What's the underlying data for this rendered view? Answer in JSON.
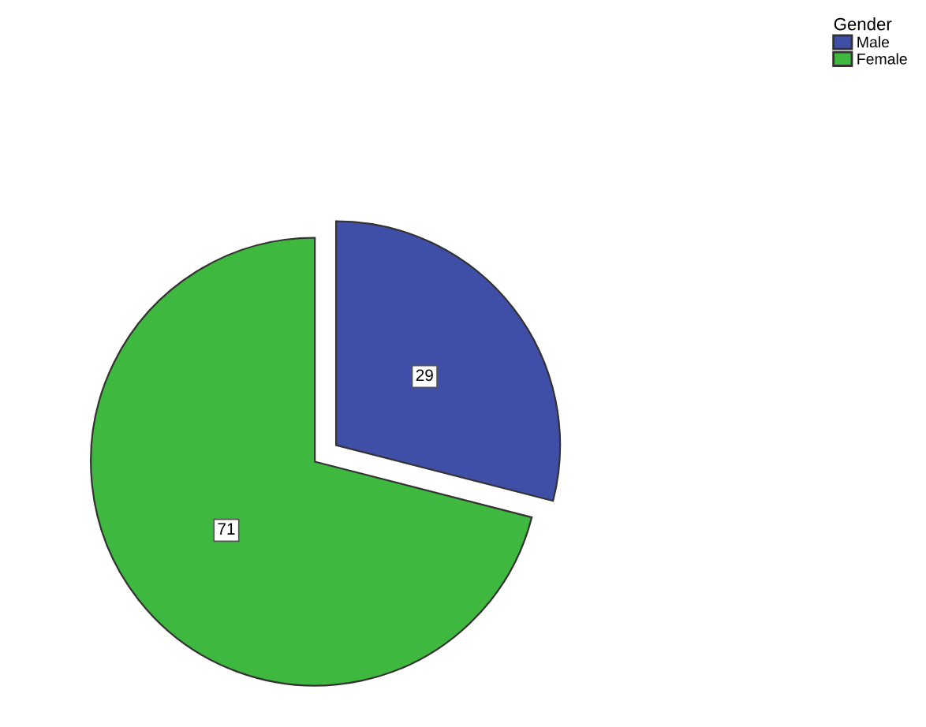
{
  "chart_data": {
    "type": "pie",
    "legend_title": "Gender",
    "categories": [
      "Male",
      "Female"
    ],
    "values": [
      29,
      71
    ],
    "colors": [
      "#3f4fa8",
      "#3fb83f"
    ],
    "data_labels": true,
    "legend": "top right"
  }
}
